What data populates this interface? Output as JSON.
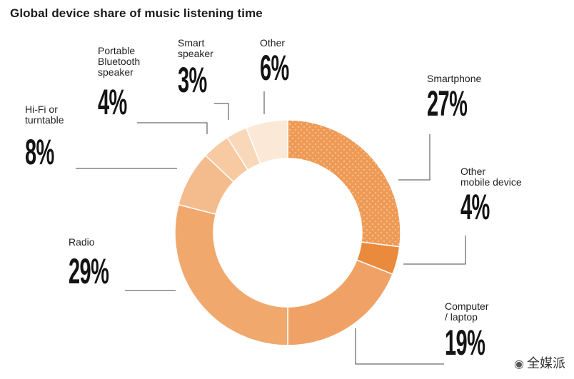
{
  "title": "Global device share of music listening time",
  "watermark": "全媒派",
  "chart_data": {
    "type": "pie",
    "donut": true,
    "title": "Global device share of music listening time",
    "slices": [
      {
        "label": "Smartphone",
        "value": 27,
        "value_label": "27%",
        "color": "#ee9a55",
        "dotted": true
      },
      {
        "label": "Other\nmobile device",
        "value": 4,
        "value_label": "4%",
        "color": "#ea8a3c"
      },
      {
        "label": "Computer\n/ laptop",
        "value": 19,
        "value_label": "19%",
        "color": "#f0a266"
      },
      {
        "label": "Radio",
        "value": 29,
        "value_label": "29%",
        "color": "#f0a86d"
      },
      {
        "label": "Hi-Fi or\nturntable",
        "value": 8,
        "value_label": "8%",
        "color": "#f4bb8c"
      },
      {
        "label": "Portable\nBluetooth\nspeaker",
        "value": 4,
        "value_label": "4%",
        "color": "#f7caa2"
      },
      {
        "label": "Smart\nspeaker",
        "value": 3,
        "value_label": "3%",
        "color": "#f9d7b9"
      },
      {
        "label": "Other",
        "value": 6,
        "value_label": "6%",
        "color": "#fce8d6"
      }
    ]
  }
}
